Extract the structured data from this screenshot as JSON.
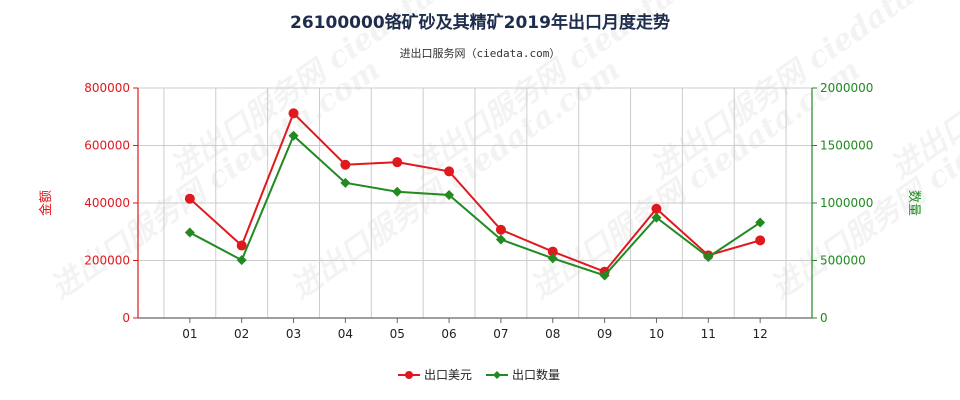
{
  "title": "26100000铬矿砂及其精矿2019年出口月度走势",
  "subtitle": "进出口服务网（ciedata.com）",
  "watermark": "进出口服务网 ciedata.com",
  "colors": {
    "amount": "#e0191f",
    "quantity": "#218a21",
    "title": "#1f2d4d",
    "grid": "#cccccc",
    "axis": "#666666"
  },
  "chart_data": {
    "type": "line",
    "categories": [
      "01",
      "02",
      "03",
      "04",
      "05",
      "06",
      "07",
      "08",
      "09",
      "10",
      "11",
      "12"
    ],
    "left_axis": {
      "label": "金额",
      "ylim": [
        0,
        800000
      ],
      "ticks": [
        "0",
        "200000",
        "400000",
        "600000",
        "800000"
      ]
    },
    "right_axis": {
      "label": "数量",
      "ylim": [
        0,
        2000000
      ],
      "ticks": [
        "0",
        "500000",
        "1000000",
        "1500000",
        "2000000"
      ]
    },
    "series": [
      {
        "name": "出口美元",
        "axis": "left",
        "marker": "circle",
        "values": [
          415000,
          252000,
          712000,
          533000,
          542000,
          510000,
          307000,
          231000,
          161000,
          380000,
          218000,
          270000
        ]
      },
      {
        "name": "出口数量",
        "axis": "right",
        "marker": "diamond",
        "values": [
          743000,
          503000,
          1585000,
          1175000,
          1098000,
          1070000,
          683000,
          519000,
          370000,
          873000,
          530000,
          830000
        ]
      }
    ],
    "grid": true,
    "legend": "bottom-center"
  }
}
